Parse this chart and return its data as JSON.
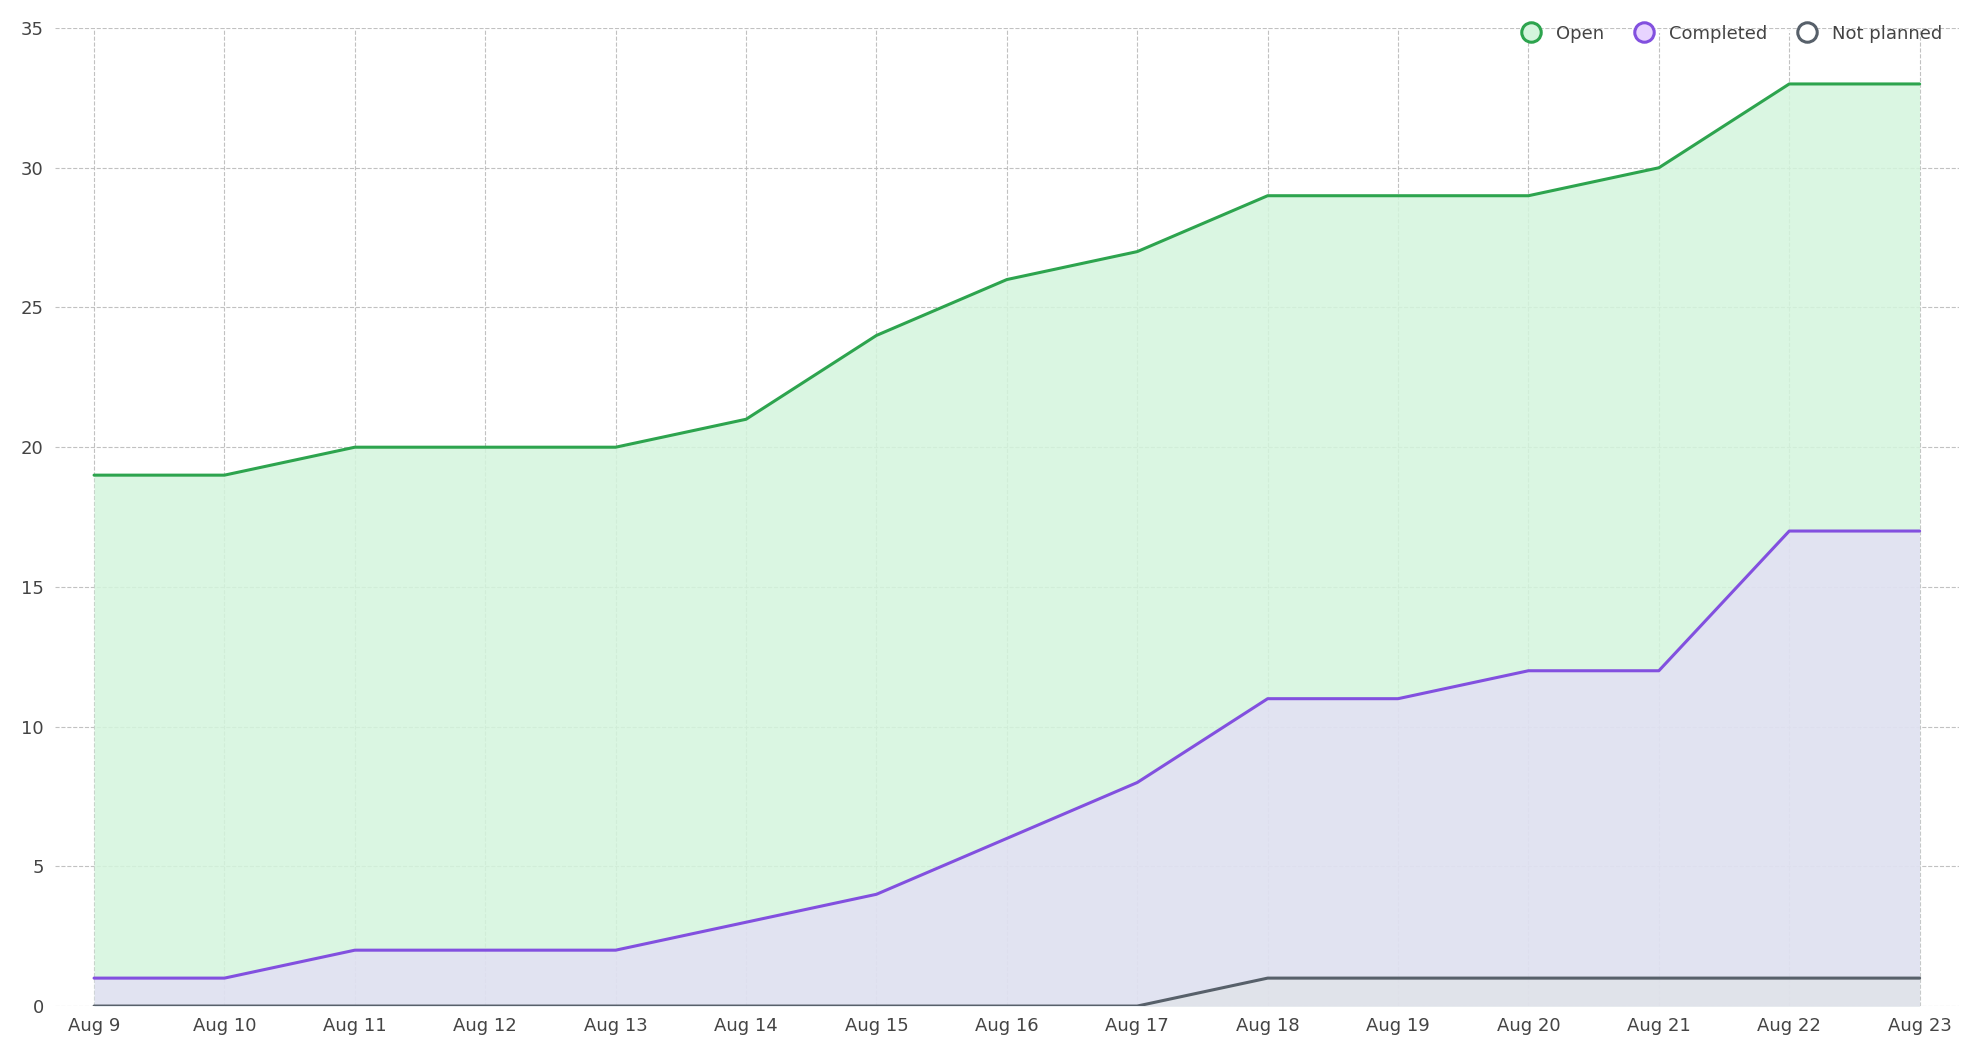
{
  "dates": [
    "Aug 9",
    "Aug 10",
    "Aug 11",
    "Aug 12",
    "Aug 13",
    "Aug 14",
    "Aug 15",
    "Aug 16",
    "Aug 17",
    "Aug 18",
    "Aug 19",
    "Aug 20",
    "Aug 21",
    "Aug 22",
    "Aug 23"
  ],
  "open": [
    19,
    19,
    20,
    20,
    20,
    21,
    24,
    26,
    27,
    29,
    29,
    29,
    30,
    33,
    33
  ],
  "completed": [
    1,
    1,
    2,
    2,
    2,
    3,
    4,
    6,
    8,
    11,
    11,
    12,
    12,
    17,
    17
  ],
  "not_planned": [
    0,
    0,
    0,
    0,
    0,
    0,
    0,
    0,
    0,
    1,
    1,
    1,
    1,
    1,
    1
  ],
  "open_color": "#2da44e",
  "open_fill": "#d4f5dd",
  "open_fill_alpha": 0.85,
  "completed_color": "#8250df",
  "completed_fill": "#e8d4ff",
  "completed_fill_alpha": 0.55,
  "not_planned_color": "#57606a",
  "not_planned_fill": "#e0e3e6",
  "not_planned_fill_alpha": 0.6,
  "background_color": "#ffffff",
  "grid_color": "#bbbbbb",
  "ylim": [
    0,
    35
  ],
  "yticks": [
    0,
    5,
    10,
    15,
    20,
    25,
    30,
    35
  ],
  "legend_labels": [
    "Open",
    "Completed",
    "Not planned"
  ],
  "label_fontsize": 13,
  "tick_fontsize": 13
}
